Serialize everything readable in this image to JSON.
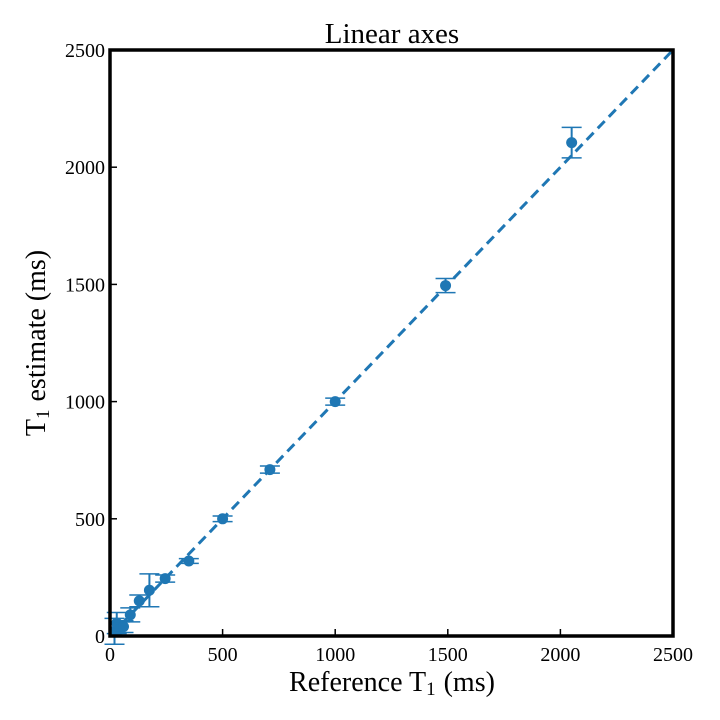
{
  "chart_data": {
    "type": "scatter",
    "title": "Linear axes",
    "xlabel": {
      "main": "Reference T",
      "sub": "1",
      "unit": "(ms)"
    },
    "ylabel": {
      "main": "T",
      "sub": "1",
      "unit": "estimate (ms)"
    },
    "xlim": [
      0,
      2500
    ],
    "ylim": [
      0,
      2500
    ],
    "xticks": [
      "0",
      "500",
      "1000",
      "1500",
      "2000",
      "2500"
    ],
    "yticks": [
      "0",
      "500",
      "1000",
      "1500",
      "2000",
      "2500"
    ],
    "grid": false,
    "colors": {
      "series": "#1f77b4",
      "frame": "#000000"
    },
    "reference_line": {
      "style": "dashed",
      "x": [
        0,
        2500
      ],
      "y": [
        0,
        2500
      ]
    },
    "series": [
      {
        "points": [
          {
            "x": 20,
            "y": 20,
            "err": 55
          },
          {
            "x": 30,
            "y": 55,
            "err": 45
          },
          {
            "x": 45,
            "y": 30,
            "err": 30
          },
          {
            "x": 60,
            "y": 40,
            "err": 25
          },
          {
            "x": 90,
            "y": 90,
            "err": 30
          },
          {
            "x": 130,
            "y": 150,
            "err": 25
          },
          {
            "x": 175,
            "y": 195,
            "err": 70
          },
          {
            "x": 245,
            "y": 245,
            "err": 15
          },
          {
            "x": 350,
            "y": 320,
            "err": 10
          },
          {
            "x": 500,
            "y": 500,
            "err": 12
          },
          {
            "x": 710,
            "y": 710,
            "err": 15
          },
          {
            "x": 1000,
            "y": 1000,
            "err": 15
          },
          {
            "x": 1490,
            "y": 1495,
            "err": 30
          },
          {
            "x": 2050,
            "y": 2105,
            "err": 65
          }
        ]
      }
    ]
  }
}
